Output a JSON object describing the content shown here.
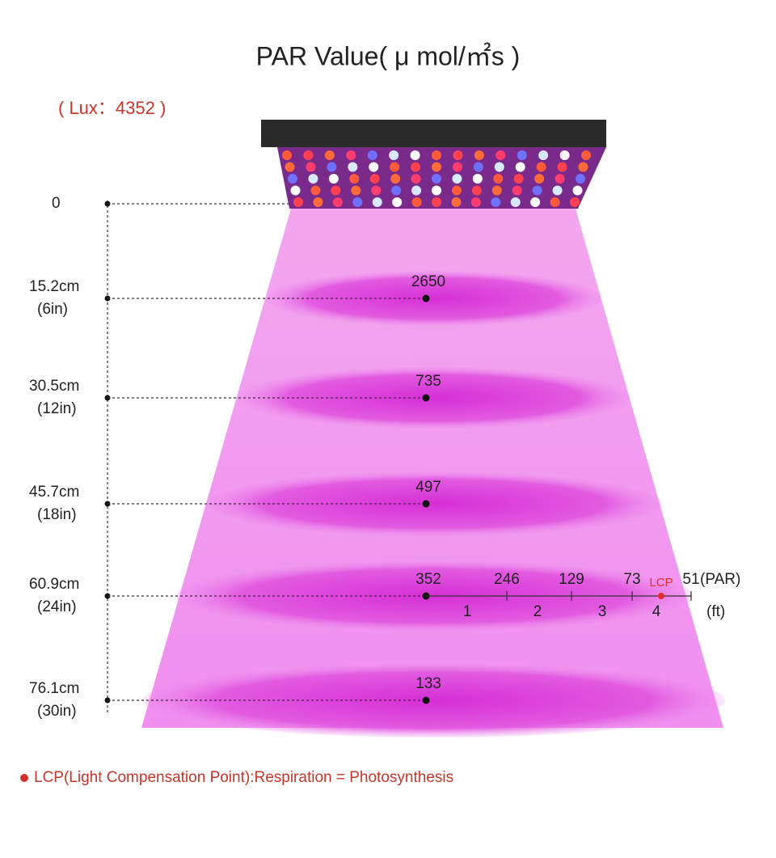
{
  "title": "PAR Value( μ mol/㎡s )",
  "lux": "( Lux：4352 )",
  "levels": [
    {
      "distance": "0"
    },
    {
      "distance": "15.2cm",
      "imperial": "(6in)",
      "par": 2650
    },
    {
      "distance": "30.5cm",
      "imperial": "(12in)",
      "par": 735
    },
    {
      "distance": "45.7cm",
      "imperial": "(18in)",
      "par": 497
    },
    {
      "distance": "60.9cm",
      "imperial": "(24in)",
      "par": 352
    },
    {
      "distance": "76.1cm",
      "imperial": "(30in)",
      "par": 133
    }
  ],
  "spread": {
    "par_values": [
      246,
      129,
      73,
      51
    ],
    "par_unit": "(PAR)",
    "feet": [
      1,
      2,
      3,
      4
    ],
    "feet_unit": "(ft)",
    "lcp_label": "LCP"
  },
  "footnote": "LCP(Light Compensation Point):Respiration = Photosynthesis"
}
